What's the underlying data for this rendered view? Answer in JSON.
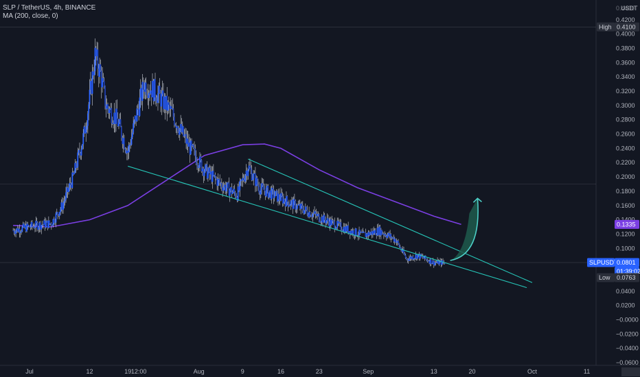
{
  "legend": {
    "symbol_line": "SLP / TetherUS, 4h, BINANCE",
    "ma_line": "MA (200, close, 0)"
  },
  "price_axis": {
    "currency": "USDT",
    "top_label": "0.4400"
  },
  "markers": {
    "high_label": "High",
    "high_value": "0.4100",
    "ma_value": "0.1335",
    "symbol": "SLPUSDT",
    "last_value": "0.0801",
    "countdown": "01:39:02",
    "low_label": "Low",
    "low_value": "0.0763"
  },
  "colors": {
    "background": "#131722",
    "candle": "#2962ff",
    "wick": "#cfd3dc",
    "ma_line": "#7b3fe4",
    "trendline": "#26c6b8",
    "arrow": "#4dd0c8",
    "arrow_fill": "#1e5a4c",
    "last_price_tag": "#2962ff",
    "ma_tag": "#7b3fe4",
    "high_low_tag": "#2a2e39"
  },
  "chart_data": {
    "type": "candlestick",
    "title": "SLP / TetherUS, 4h, BINANCE",
    "y_ticks": [
      "0.4200",
      "0.4000",
      "0.3800",
      "0.3600",
      "0.3400",
      "0.3200",
      "0.3000",
      "0.2800",
      "0.2600",
      "0.2400",
      "0.2200",
      "0.2000",
      "0.1800",
      "0.1600",
      "0.1400",
      "0.1200",
      "0.1000",
      "0.0600",
      "0.0400",
      "0.0200",
      "−0.0000",
      "−0.0200",
      "−0.0400",
      "−0.0600"
    ],
    "ylim": [
      -0.06,
      0.44
    ],
    "x_ticks": [
      "Jul",
      "12",
      "19",
      "12:00",
      "Aug",
      "9",
      "16",
      "23",
      "Sep",
      "13",
      "20",
      "Oct",
      "11"
    ],
    "grid": true,
    "price_path": [
      {
        "date": "2021-06-28",
        "close": 0.125
      },
      {
        "date": "2021-07-02",
        "close": 0.132
      },
      {
        "date": "2021-07-05",
        "close": 0.135
      },
      {
        "date": "2021-07-07",
        "close": 0.16
      },
      {
        "date": "2021-07-09",
        "close": 0.2
      },
      {
        "date": "2021-07-11",
        "close": 0.26
      },
      {
        "date": "2021-07-12",
        "close": 0.31
      },
      {
        "date": "2021-07-13",
        "close": 0.37
      },
      {
        "date": "2021-07-14",
        "close": 0.345
      },
      {
        "date": "2021-07-15",
        "close": 0.3
      },
      {
        "date": "2021-07-17",
        "close": 0.28
      },
      {
        "date": "2021-07-19",
        "close": 0.235
      },
      {
        "date": "2021-07-21",
        "close": 0.3
      },
      {
        "date": "2021-07-22",
        "close": 0.33
      },
      {
        "date": "2021-07-24",
        "close": 0.32
      },
      {
        "date": "2021-07-27",
        "close": 0.29
      },
      {
        "date": "2021-07-30",
        "close": 0.245
      },
      {
        "date": "2021-08-02",
        "close": 0.21
      },
      {
        "date": "2021-08-05",
        "close": 0.19
      },
      {
        "date": "2021-08-08",
        "close": 0.175
      },
      {
        "date": "2021-08-10",
        "close": 0.215
      },
      {
        "date": "2021-08-12",
        "close": 0.185
      },
      {
        "date": "2021-08-16",
        "close": 0.17
      },
      {
        "date": "2021-08-20",
        "close": 0.155
      },
      {
        "date": "2021-08-24",
        "close": 0.14
      },
      {
        "date": "2021-08-27",
        "close": 0.13
      },
      {
        "date": "2021-08-31",
        "close": 0.118
      },
      {
        "date": "2021-09-03",
        "close": 0.125
      },
      {
        "date": "2021-09-06",
        "close": 0.112
      },
      {
        "date": "2021-09-08",
        "close": 0.085
      },
      {
        "date": "2021-09-10",
        "close": 0.09
      },
      {
        "date": "2021-09-13",
        "close": 0.08
      },
      {
        "date": "2021-09-15",
        "close": 0.0801
      }
    ],
    "series": [
      {
        "name": "MA (200, close, 0)",
        "points": [
          {
            "date": "2021-06-28",
            "value": 0.132
          },
          {
            "date": "2021-07-05",
            "value": 0.13
          },
          {
            "date": "2021-07-12",
            "value": 0.14
          },
          {
            "date": "2021-07-19",
            "value": 0.16
          },
          {
            "date": "2021-07-26",
            "value": 0.195
          },
          {
            "date": "2021-08-02",
            "value": 0.23
          },
          {
            "date": "2021-08-09",
            "value": 0.245
          },
          {
            "date": "2021-08-13",
            "value": 0.246
          },
          {
            "date": "2021-08-16",
            "value": 0.24
          },
          {
            "date": "2021-08-23",
            "value": 0.21
          },
          {
            "date": "2021-08-30",
            "value": 0.185
          },
          {
            "date": "2021-09-06",
            "value": 0.165
          },
          {
            "date": "2021-09-13",
            "value": 0.145
          },
          {
            "date": "2021-09-18",
            "value": 0.1335
          }
        ]
      }
    ],
    "annotations": [
      {
        "type": "trendline",
        "from": {
          "date": "2021-07-19",
          "value": 0.215
        },
        "to": {
          "date": "2021-09-30",
          "value": 0.045
        }
      },
      {
        "type": "trendline",
        "from": {
          "date": "2021-08-10",
          "value": 0.225
        },
        "to": {
          "date": "2021-10-01",
          "value": 0.052
        }
      },
      {
        "type": "arrow",
        "from": {
          "date": "2021-09-16",
          "value": 0.083
        },
        "to": {
          "date": "2021-09-21",
          "value": 0.17
        },
        "direction": "up"
      }
    ]
  }
}
